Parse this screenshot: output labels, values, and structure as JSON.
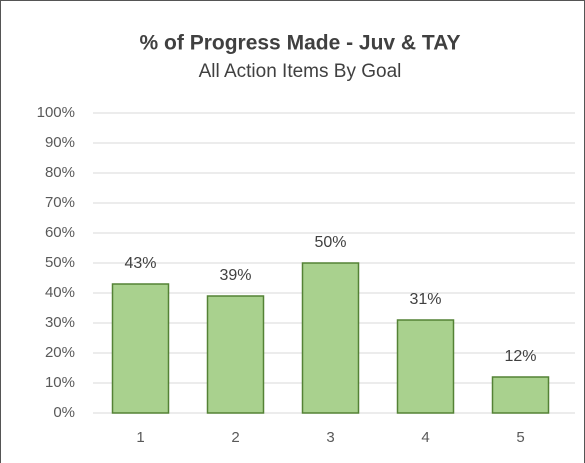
{
  "chart_data": {
    "type": "bar",
    "title": "% of Progress Made - Juv & TAY",
    "subtitle": "All Action Items By Goal",
    "categories": [
      "1",
      "2",
      "3",
      "4",
      "5"
    ],
    "values": [
      43,
      39,
      50,
      31,
      12
    ],
    "value_labels": [
      "43%",
      "39%",
      "50%",
      "31%",
      "12%"
    ],
    "color": "#a9d18e",
    "edge_color": "#548235",
    "ylim": [
      0,
      100
    ],
    "yticks": [
      {
        "value": 0,
        "label": "0%"
      },
      {
        "value": 10,
        "label": "10%"
      },
      {
        "value": 20,
        "label": "20%"
      },
      {
        "value": 30,
        "label": "30%"
      },
      {
        "value": 40,
        "label": "40%"
      },
      {
        "value": 50,
        "label": "50%"
      },
      {
        "value": 60,
        "label": "60%"
      },
      {
        "value": 70,
        "label": "70%"
      },
      {
        "value": 80,
        "label": "80%"
      },
      {
        "value": 90,
        "label": "90%"
      },
      {
        "value": 100,
        "label": "100%"
      }
    ],
    "grid": true
  }
}
